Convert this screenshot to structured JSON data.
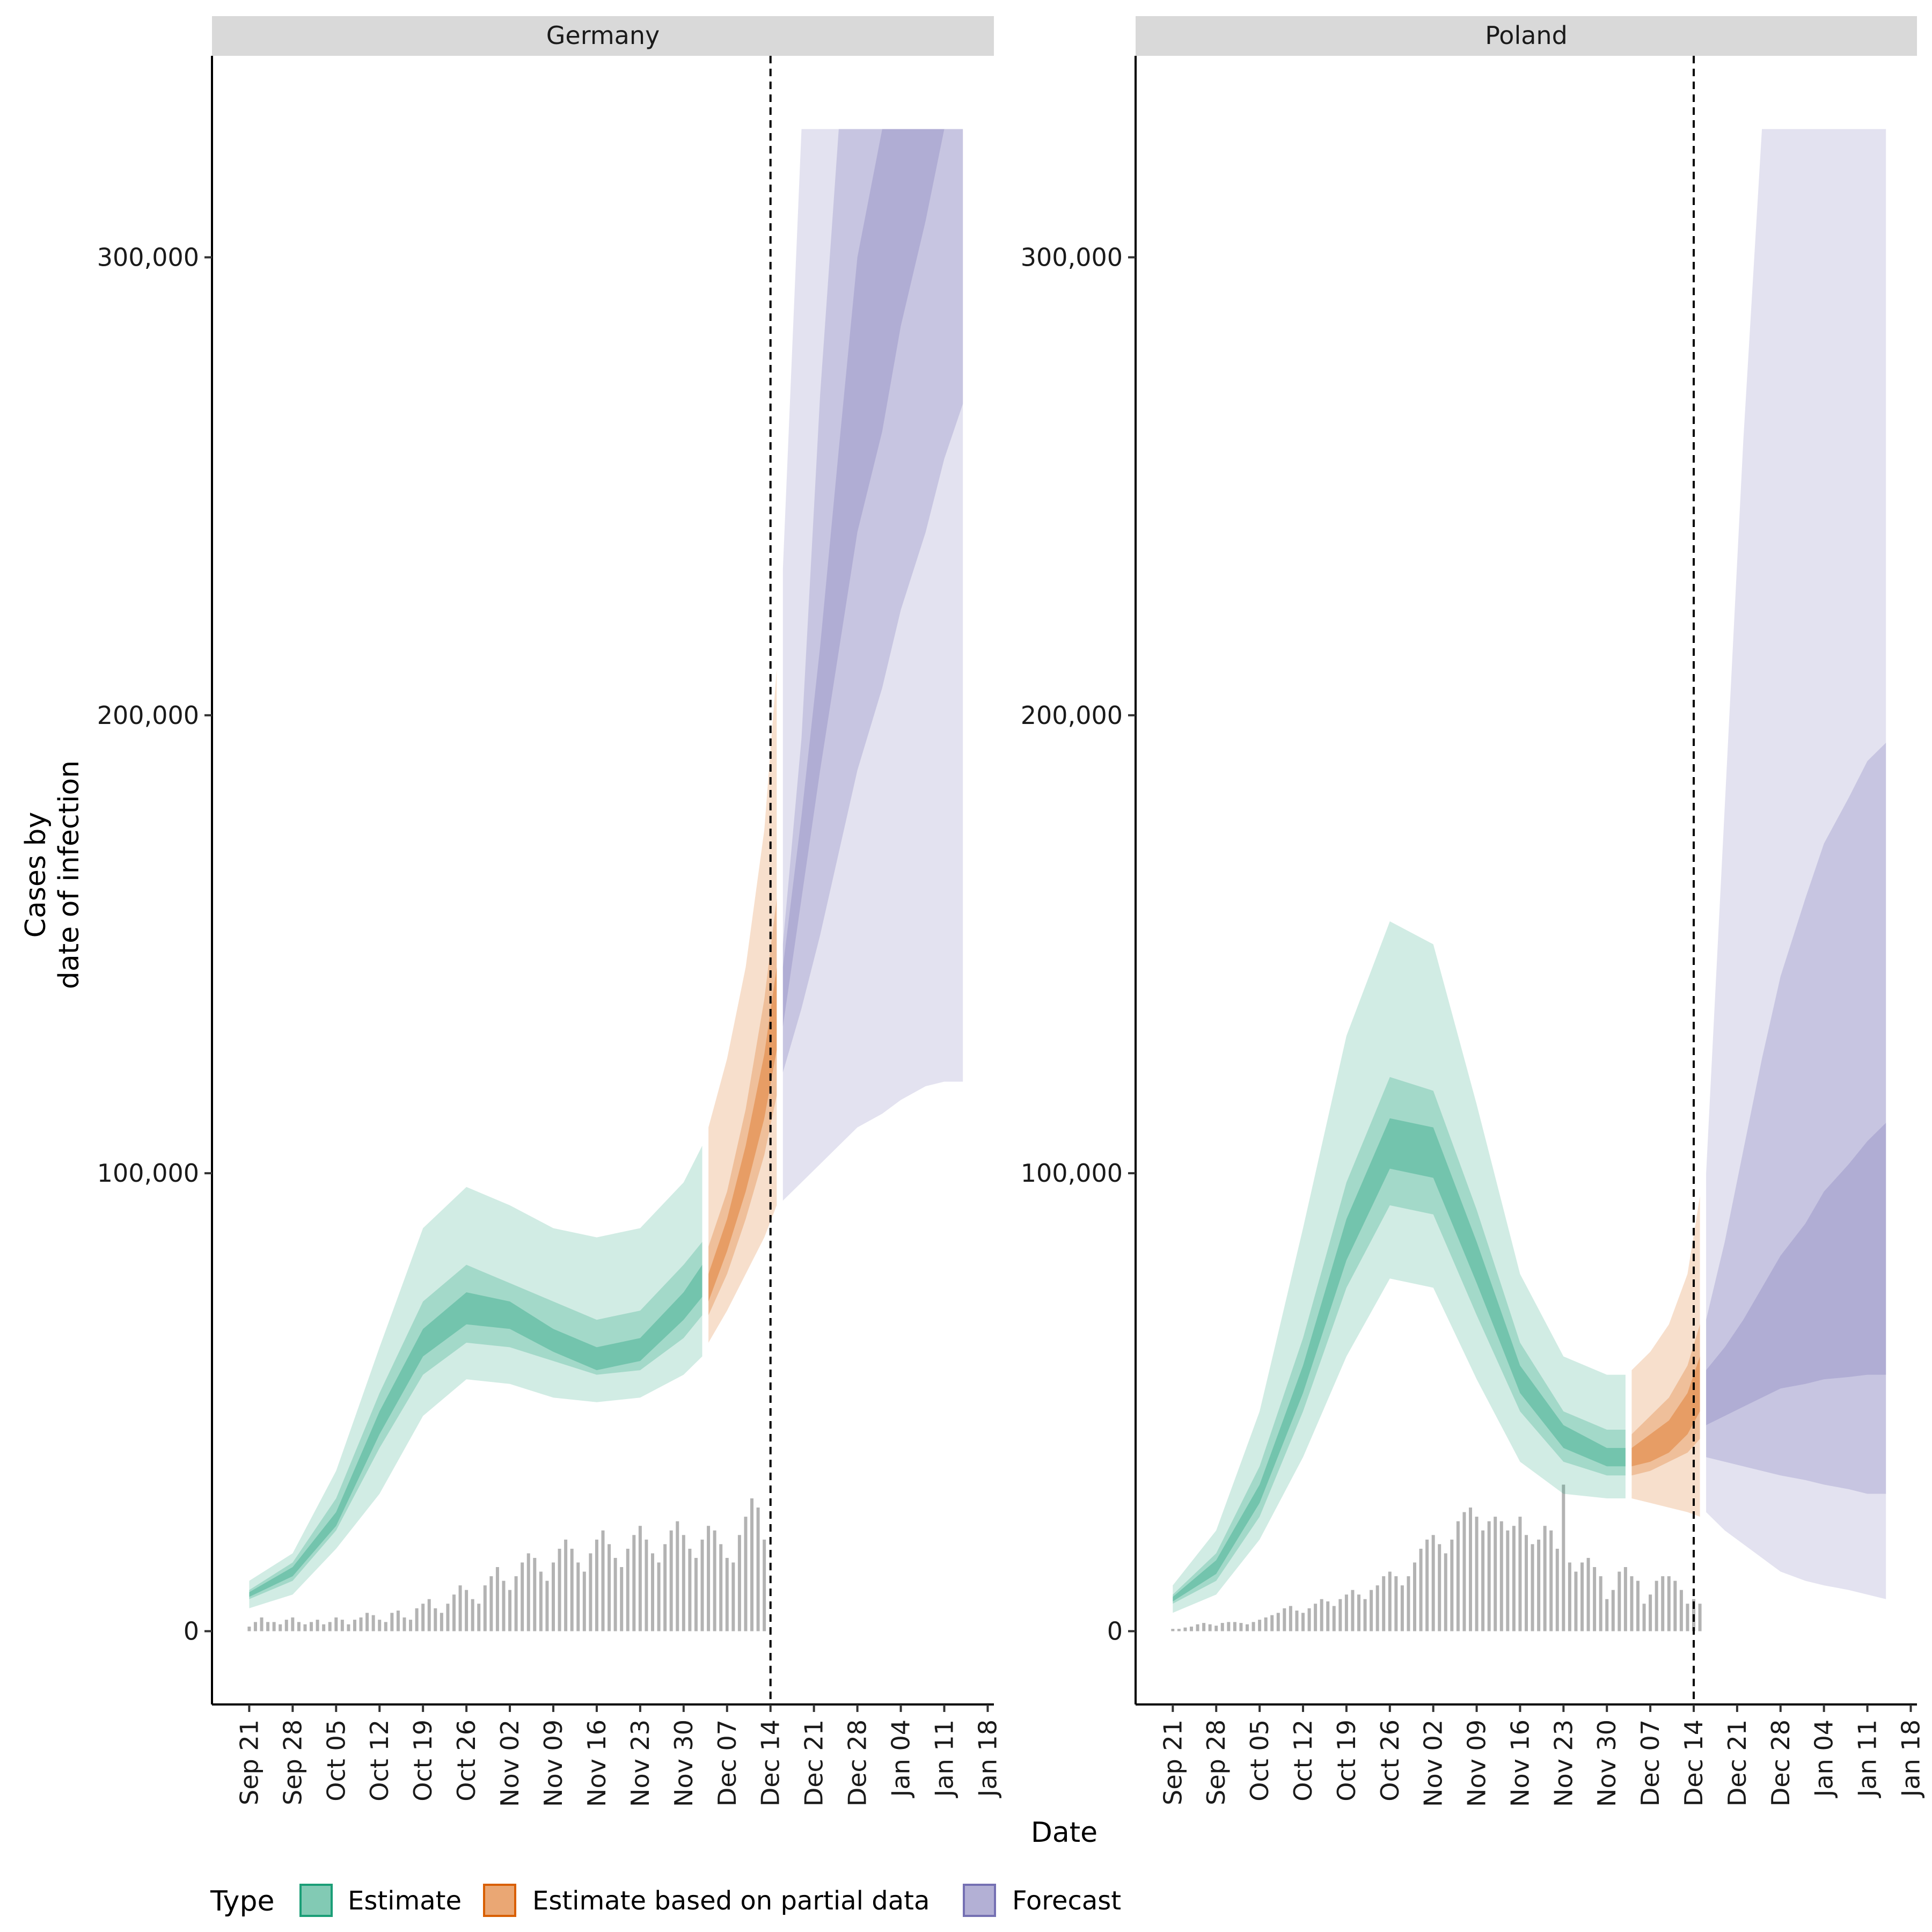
{
  "chart_data": {
    "type": "area",
    "xlabel": "Date",
    "ylabel_lines": [
      "Cases by",
      "date of infection"
    ],
    "y_ticks": [
      0,
      100000,
      200000,
      300000
    ],
    "y_tick_labels": [
      "0",
      "100,000",
      "200,000",
      "300,000"
    ],
    "x_tick_labels": [
      "Sep 21",
      "Sep 28",
      "Oct 05",
      "Oct 12",
      "Oct 19",
      "Oct 26",
      "Nov 02",
      "Nov 09",
      "Nov 16",
      "Nov 23",
      "Nov 30",
      "Dec 07",
      "Dec 14",
      "Dec 21",
      "Dec 28",
      "Jan 04",
      "Jan 11",
      "Jan 18"
    ],
    "x_range_days": [
      -6,
      120
    ],
    "y_range": [
      -16000,
      344000
    ],
    "y_clip": 328000,
    "grid": false,
    "legend": {
      "title": "Type",
      "position": "bottom-left",
      "entries": [
        "Estimate",
        "Estimate based on partial data",
        "Forecast"
      ]
    },
    "colors": {
      "estimate": "#1b9e77",
      "partial": "#d95f02",
      "forecast": "#7570b3",
      "reported_bars": "#b3b3b3",
      "strip_bg": "#d9d9d9"
    },
    "panels": [
      {
        "name": "Germany",
        "date_divider": "Dec 14",
        "estimate": {
          "days": [
            0,
            7,
            14,
            21,
            28,
            35,
            42,
            49,
            56,
            63,
            70,
            73
          ],
          "median": [
            8000,
            13000,
            25000,
            45000,
            62000,
            70000,
            68000,
            62000,
            58000,
            60000,
            70000,
            76000
          ],
          "lower_90": [
            5000,
            8000,
            18000,
            30000,
            47000,
            55000,
            54000,
            51000,
            50000,
            51000,
            56000,
            60000
          ],
          "upper_90": [
            11000,
            17000,
            35000,
            62000,
            88000,
            97000,
            93000,
            88000,
            86000,
            88000,
            98000,
            106000
          ],
          "lower_50": [
            7000,
            11000,
            22000,
            40000,
            56000,
            63000,
            62000,
            59000,
            56000,
            57000,
            64000,
            69000
          ],
          "upper_50": [
            9000,
            15000,
            29000,
            52000,
            72000,
            80000,
            76000,
            72000,
            68000,
            70000,
            80000,
            85000
          ],
          "lower_20": [
            7500,
            12000,
            23000,
            43000,
            60000,
            67000,
            66000,
            61000,
            57000,
            59000,
            68000,
            73000
          ],
          "upper_20": [
            8500,
            14000,
            26000,
            48000,
            66000,
            74000,
            72000,
            66000,
            62000,
            64000,
            74000,
            80000
          ]
        },
        "partial": {
          "days": [
            74,
            77,
            80,
            83,
            85
          ],
          "median": [
            74000,
            86000,
            100000,
            118000,
            135000
          ],
          "lower_90": [
            63000,
            70000,
            78000,
            86000,
            93000
          ],
          "upper_90": [
            110000,
            125000,
            145000,
            175000,
            210000
          ],
          "lower_50": [
            69000,
            78000,
            90000,
            104000,
            117000
          ],
          "upper_50": [
            84000,
            96000,
            114000,
            138000,
            160000
          ],
          "lower_20": [
            72000,
            83000,
            96000,
            112000,
            127000
          ],
          "upper_20": [
            78000,
            90000,
            106000,
            126000,
            145000
          ]
        },
        "forecast": {
          "days": [
            86,
            89,
            92,
            95,
            98,
            102,
            105,
            109,
            112,
            115
          ],
          "lower_90": [
            94000,
            98000,
            102000,
            106000,
            110000,
            113000,
            116000,
            119000,
            120000,
            120000
          ],
          "upper_90": [
            232000,
            328000,
            328000,
            328000,
            328000,
            328000,
            328000,
            328000,
            328000,
            328000
          ],
          "lower_50": [
            122000,
            136000,
            152000,
            170000,
            188000,
            206000,
            223000,
            240000,
            256000,
            268000
          ],
          "upper_50": [
            150000,
            195000,
            270000,
            328000,
            328000,
            328000,
            328000,
            328000,
            328000,
            328000
          ],
          "lower_20": [
            132000,
            160000,
            188000,
            214000,
            240000,
            262000,
            285000,
            308000,
            328000,
            328000
          ],
          "upper_20": [
            145000,
            178000,
            215000,
            258000,
            300000,
            328000,
            328000,
            328000,
            328000,
            328000
          ]
        },
        "reported": [
          1000,
          2000,
          3000,
          2000,
          2000,
          1500,
          2500,
          3000,
          2000,
          1500,
          2000,
          2500,
          1500,
          2000,
          3000,
          2500,
          1500,
          2500,
          3000,
          4000,
          3500,
          2500,
          2000,
          4000,
          4500,
          3000,
          2500,
          5000,
          6000,
          7000,
          5000,
          4000,
          6000,
          8000,
          10000,
          9000,
          7000,
          6000,
          10000,
          12000,
          14000,
          11000,
          9000,
          12000,
          15000,
          17000,
          16000,
          13000,
          11000,
          15000,
          18000,
          20000,
          18000,
          15000,
          13000,
          17000,
          20000,
          22000,
          19000,
          16000,
          14000,
          18000,
          21000,
          23000,
          20000,
          17000,
          15000,
          19000,
          22000,
          24000,
          21000,
          18000,
          16000,
          20000,
          23000,
          22000,
          19000,
          16000,
          15000,
          21000,
          25000,
          29000,
          27000,
          20000
        ]
      },
      {
        "name": "Poland",
        "date_divider": "Dec 14",
        "estimate": {
          "days": [
            0,
            7,
            14,
            21,
            28,
            35,
            42,
            49,
            56,
            63,
            70,
            73
          ],
          "median": [
            7000,
            14000,
            30000,
            55000,
            85000,
            106000,
            104000,
            80000,
            55000,
            42000,
            38000,
            38000
          ],
          "lower_90": [
            4000,
            8000,
            20000,
            38000,
            60000,
            77000,
            75000,
            55000,
            37000,
            30000,
            29000,
            29000
          ],
          "upper_90": [
            10000,
            22000,
            48000,
            88000,
            130000,
            155000,
            150000,
            115000,
            78000,
            60000,
            56000,
            56000
          ],
          "lower_50": [
            6000,
            11000,
            25000,
            48000,
            75000,
            93000,
            91000,
            69000,
            48000,
            37000,
            34000,
            34000
          ],
          "upper_50": [
            8000,
            17000,
            36000,
            64000,
            98000,
            121000,
            118000,
            92000,
            63000,
            48000,
            44000,
            44000
          ],
          "lower_20": [
            6500,
            12500,
            28000,
            52000,
            81000,
            101000,
            99000,
            76000,
            52000,
            40000,
            36000,
            36000
          ],
          "upper_20": [
            7500,
            15500,
            32000,
            58000,
            90000,
            112000,
            110000,
            85000,
            58000,
            45000,
            40000,
            40000
          ]
        },
        "partial": {
          "days": [
            74,
            77,
            80,
            83,
            85
          ],
          "median": [
            38000,
            40000,
            43000,
            48000,
            55000
          ],
          "lower_90": [
            29000,
            28000,
            27000,
            26000,
            25000
          ],
          "upper_90": [
            57000,
            61000,
            67000,
            78000,
            95000
          ],
          "lower_50": [
            34000,
            35000,
            37000,
            39000,
            42000
          ],
          "upper_50": [
            43000,
            47000,
            51000,
            58000,
            67000
          ],
          "lower_20": [
            36000,
            37000,
            39000,
            43000,
            48000
          ],
          "upper_20": [
            40000,
            43000,
            46000,
            52000,
            60000
          ]
        },
        "forecast": {
          "days": [
            86,
            89,
            92,
            95,
            98,
            102,
            105,
            109,
            112,
            115
          ],
          "lower_90": [
            26000,
            22000,
            19000,
            16000,
            13000,
            11000,
            10000,
            9000,
            8000,
            7000
          ],
          "upper_90": [
            100000,
            180000,
            260000,
            328000,
            328000,
            328000,
            328000,
            328000,
            328000,
            328000
          ],
          "lower_50": [
            38000,
            37000,
            36000,
            35000,
            34000,
            33000,
            32000,
            31000,
            30000,
            30000
          ],
          "upper_50": [
            68000,
            85000,
            105000,
            125000,
            143000,
            160000,
            172000,
            182000,
            190000,
            194000
          ],
          "lower_20": [
            45000,
            47000,
            49000,
            51000,
            53000,
            54000,
            55000,
            55500,
            56000,
            56000
          ],
          "upper_20": [
            57000,
            62000,
            68000,
            75000,
            82000,
            89000,
            96000,
            102000,
            107000,
            111000
          ]
        },
        "reported": [
          500,
          500,
          800,
          1000,
          1500,
          1800,
          1500,
          1200,
          1800,
          2000,
          2000,
          1800,
          1500,
          2000,
          2500,
          3000,
          3500,
          4000,
          5000,
          5500,
          4500,
          4000,
          5000,
          6000,
          7000,
          6500,
          5500,
          7000,
          8000,
          9000,
          8000,
          7000,
          9000,
          10000,
          12000,
          13000,
          12000,
          10000,
          12000,
          15000,
          18000,
          20000,
          21000,
          19000,
          17000,
          20000,
          24000,
          26000,
          27000,
          25000,
          22000,
          24000,
          25000,
          24000,
          22000,
          23000,
          25000,
          21000,
          19000,
          20000,
          23000,
          22000,
          18000,
          32000,
          15000,
          13000,
          15000,
          16000,
          14000,
          12000,
          7000,
          9000,
          13000,
          14000,
          12000,
          11000,
          6000,
          8000,
          11000,
          12000,
          12000,
          11000,
          9000,
          6000,
          7000,
          6000
        ]
      }
    ]
  }
}
